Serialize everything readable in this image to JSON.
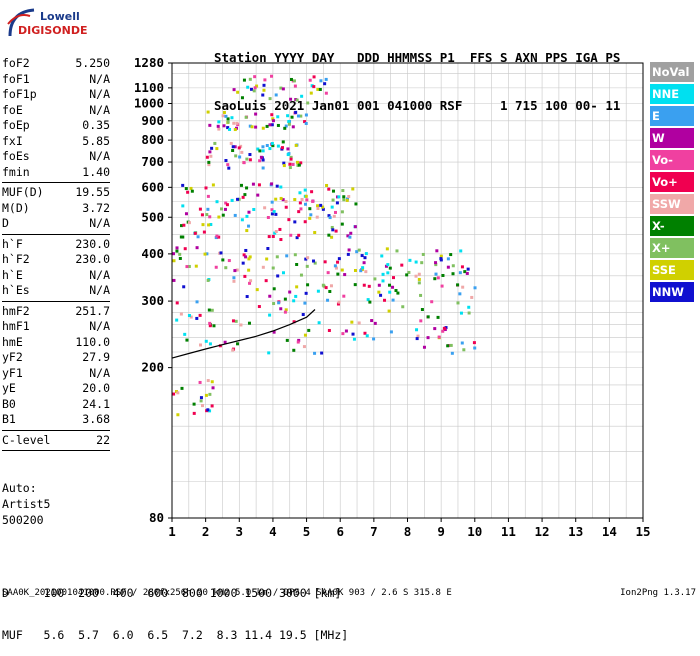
{
  "logo": {
    "line1": "Lowell",
    "line2": "DIGISONDE"
  },
  "header": {
    "line1": "Station YYYY DAY   DDD HHMMSS P1  FFS S AXN PPS IGA PS",
    "line2": "SaoLuis 2021 Jan01 001 041000 RSF     1 715 100 00- 11"
  },
  "params": [
    {
      "label": "foF2",
      "value": "5.250"
    },
    {
      "label": "foF1",
      "value": "N/A"
    },
    {
      "label": "foF1p",
      "value": "N/A"
    },
    {
      "label": "foE",
      "value": "N/A"
    },
    {
      "label": "foEp",
      "value": "0.35"
    },
    {
      "label": "fxI",
      "value": "5.85"
    },
    {
      "label": "foEs",
      "value": "N/A"
    },
    {
      "label": "fmin",
      "value": "1.40"
    },
    {
      "sep": true
    },
    {
      "label": "MUF(D)",
      "value": "19.55"
    },
    {
      "label": "M(D)",
      "value": "3.72"
    },
    {
      "label": "D",
      "value": "N/A"
    },
    {
      "sep": true
    },
    {
      "label": "h`F",
      "value": "230.0"
    },
    {
      "label": "h`F2",
      "value": "230.0"
    },
    {
      "label": "h`E",
      "value": "N/A"
    },
    {
      "label": "h`Es",
      "value": "N/A"
    },
    {
      "sep": true
    },
    {
      "label": "hmF2",
      "value": "251.7"
    },
    {
      "label": "hmF1",
      "value": "N/A"
    },
    {
      "label": "hmE",
      "value": "110.0"
    },
    {
      "label": "yF2",
      "value": "27.9"
    },
    {
      "label": "yF1",
      "value": "N/A"
    },
    {
      "label": "yE",
      "value": "20.0"
    },
    {
      "label": "B0",
      "value": "24.1"
    },
    {
      "label": "B1",
      "value": "3.68"
    },
    {
      "sep": true
    },
    {
      "label": "C-level",
      "value": "22"
    },
    {
      "sep": true
    }
  ],
  "auto": {
    "line1": "Auto:",
    "line2": "Artist5",
    "line3": "500200"
  },
  "legend": [
    {
      "label": "NoVal",
      "color": "#a0a0a0"
    },
    {
      "label": "NNE",
      "color": "#00e0f0"
    },
    {
      "label": "E",
      "color": "#3aa0f0"
    },
    {
      "label": "W",
      "color": "#b000a0"
    },
    {
      "label": "Vo-",
      "color": "#f040a0"
    },
    {
      "label": "Vo+",
      "color": "#f00050"
    },
    {
      "label": "SSW",
      "color": "#f0a8a8"
    },
    {
      "label": "X-",
      "color": "#008000"
    },
    {
      "label": "X+",
      "color": "#80c060"
    },
    {
      "label": "SSE",
      "color": "#d0d000"
    },
    {
      "label": "NNW",
      "color": "#1010d0"
    }
  ],
  "muf_table": {
    "line1": "D     100  200  400  600  800 1000 1500 3000 [km]",
    "line2": "MUF   5.6  5.7  6.0  6.5  7.2  8.3 11.4 19.5 [MHz]"
  },
  "footer": {
    "text": "SAA0K_2021001041000.RSF / 280fx256h 50 kHz 5.0 km / DPS-4 SAA0K 903 / 2.6 S 315.8 E",
    "version": "Ion2Png 1.3.17"
  },
  "chart_data": {
    "type": "scatter",
    "title": "",
    "xlabel": "",
    "ylabel": "",
    "xlim": [
      1,
      15
    ],
    "xticks": [
      1,
      2,
      3,
      4,
      5,
      6,
      7,
      8,
      9,
      10,
      11,
      12,
      13,
      14,
      15
    ],
    "ylim": [
      80,
      1280
    ],
    "yticks": [
      80,
      200,
      300,
      400,
      500,
      600,
      700,
      800,
      900,
      1000,
      1100,
      1280
    ],
    "yscale": "log",
    "grid": true,
    "legend_position": "right",
    "trace_curve": {
      "x": [
        1.0,
        1.5,
        2.0,
        2.5,
        3.0,
        3.5,
        4.0,
        4.5,
        5.0,
        5.25
      ],
      "y": [
        212,
        218,
        224,
        230,
        236,
        242,
        250,
        260,
        272,
        285
      ]
    },
    "echo_clusters": [
      {
        "region": "F2 trace",
        "x_range": [
          1.0,
          10.0
        ],
        "y_range": [
          220,
          420
        ]
      },
      {
        "region": "2nd hop",
        "x_range": [
          1.2,
          6.5
        ],
        "y_range": [
          440,
          620
        ]
      },
      {
        "region": "3rd hop",
        "x_range": [
          2.0,
          4.8
        ],
        "y_range": [
          680,
          800
        ]
      },
      {
        "region": "4th hop",
        "x_range": [
          2.0,
          5.0
        ],
        "y_range": [
          860,
          960
        ]
      },
      {
        "region": "sparse upper",
        "x_range": [
          2.8,
          5.6
        ],
        "y_range": [
          1000,
          1200
        ]
      },
      {
        "region": "low echoes",
        "x_range": [
          1.0,
          2.2
        ],
        "y_range": [
          150,
          190
        ]
      }
    ]
  }
}
